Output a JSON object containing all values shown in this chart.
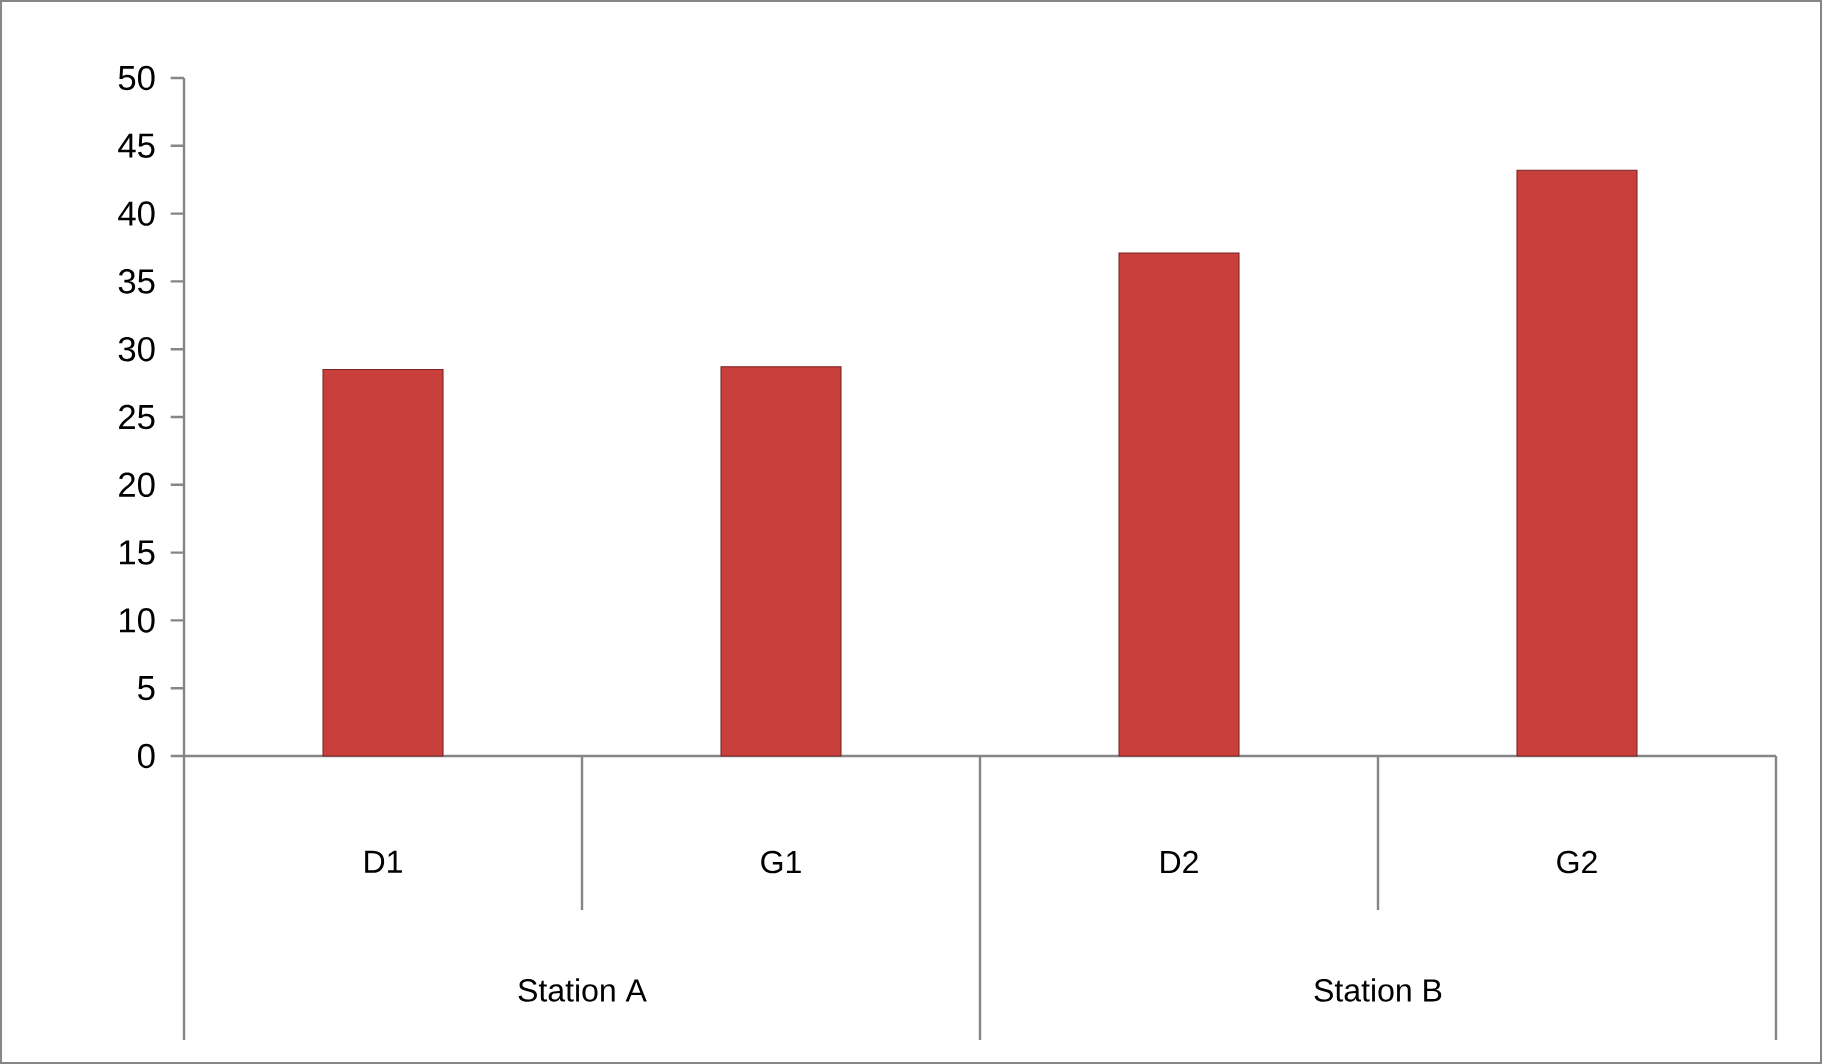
{
  "chart_data": {
    "type": "bar",
    "categories": [
      "D1",
      "G1",
      "D2",
      "G2"
    ],
    "values": [
      28.5,
      28.7,
      37.1,
      43.2
    ],
    "color": "#c83f3b",
    "ylim": [
      0,
      50
    ],
    "yticks": [
      0,
      5,
      10,
      15,
      20,
      25,
      30,
      35,
      40,
      45,
      50
    ],
    "grid": false,
    "annotations": [
      "Station A",
      "Station B"
    ]
  }
}
